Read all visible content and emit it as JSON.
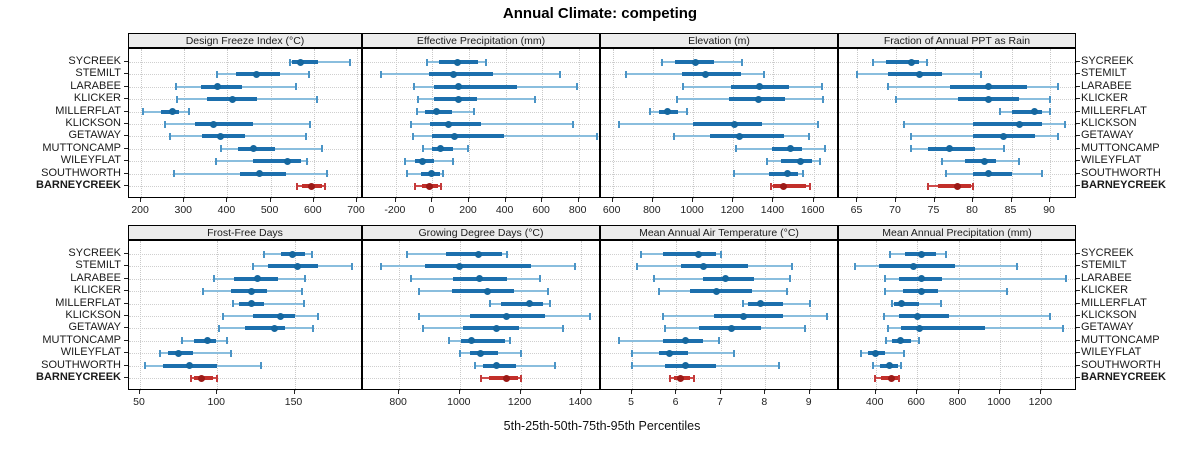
{
  "title": "Annual Climate: competing",
  "caption": "5th-25th-50th-75th-95th Percentiles",
  "colors": {
    "blue_whisker": "#8abede",
    "blue_cap": "#4a94c6",
    "blue_bar": "#1c6fad",
    "blue_dot": "#15679f",
    "red_whisker": "#cf4b4b",
    "red_cap": "#c43a3a",
    "red_bar": "#c22f2a",
    "red_dot": "#9c1a17",
    "strip_bg": "#ececec",
    "grid": "#c9c9c9"
  },
  "chart_data": {
    "type": "interval-dotplot-trellis",
    "percentiles": [
      5,
      25,
      50,
      75,
      95
    ],
    "grid": "dotted",
    "highlight_site": "BARNEYCREEK",
    "sites": [
      {
        "name": "SYCREEK",
        "bold": false
      },
      {
        "name": "STEMILT",
        "bold": false
      },
      {
        "name": "LARABEE",
        "bold": false
      },
      {
        "name": "KLICKER",
        "bold": false
      },
      {
        "name": "MILLERFLAT",
        "bold": false
      },
      {
        "name": "KLICKSON",
        "bold": false
      },
      {
        "name": "GETAWAY",
        "bold": false
      },
      {
        "name": "MUTTONCAMP",
        "bold": false
      },
      {
        "name": "WILEYFLAT",
        "bold": false
      },
      {
        "name": "SOUTHWORTH",
        "bold": false
      },
      {
        "name": "BARNEYCREEK",
        "bold": true
      }
    ],
    "panels": [
      {
        "title": "Design Freeze Index (°C)",
        "row": 0,
        "col": 0,
        "ticks": [
          200,
          300,
          400,
          500,
          600,
          700
        ],
        "min": 172,
        "max": 714,
        "values": [
          [
            545,
            550,
            570,
            610,
            685
          ],
          [
            376,
            420,
            468,
            522,
            588
          ],
          [
            282,
            338,
            378,
            434,
            558
          ],
          [
            284,
            353,
            411,
            468,
            607
          ],
          [
            204,
            245,
            272,
            288,
            310
          ],
          [
            255,
            325,
            368,
            460,
            592
          ],
          [
            268,
            340,
            383,
            440,
            583
          ],
          [
            385,
            425,
            460,
            510,
            620
          ],
          [
            373,
            460,
            538,
            570,
            585
          ],
          [
            277,
            430,
            475,
            535,
            630
          ],
          [
            560,
            572,
            595,
            618,
            625
          ]
        ]
      },
      {
        "title": "Effective Precipitation (mm)",
        "row": 0,
        "col": 1,
        "ticks": [
          -200,
          0,
          200,
          400,
          600,
          800
        ],
        "min": -380,
        "max": 922,
        "values": [
          [
            -30,
            35,
            135,
            250,
            295
          ],
          [
            -280,
            -20,
            115,
            330,
            700
          ],
          [
            -100,
            10,
            140,
            460,
            790
          ],
          [
            -77,
            10,
            140,
            242,
            560
          ],
          [
            -86,
            -40,
            20,
            105,
            225
          ],
          [
            -120,
            -15,
            85,
            265,
            770
          ],
          [
            -105,
            -5,
            120,
            390,
            900
          ],
          [
            -50,
            -5,
            45,
            110,
            195
          ],
          [
            -150,
            -95,
            -55,
            10,
            110
          ],
          [
            -140,
            -60,
            -5,
            40,
            60
          ],
          [
            -95,
            -55,
            -15,
            30,
            45
          ]
        ]
      },
      {
        "title": "Elevation (m)",
        "row": 0,
        "col": 2,
        "ticks": [
          600,
          800,
          1000,
          1200,
          1400,
          1600
        ],
        "min": 542,
        "max": 1726,
        "values": [
          [
            845,
            910,
            1010,
            1105,
            1245
          ],
          [
            665,
            945,
            1060,
            1240,
            1355
          ],
          [
            950,
            1190,
            1330,
            1475,
            1640
          ],
          [
            920,
            1180,
            1325,
            1455,
            1645
          ],
          [
            785,
            830,
            875,
            925,
            970
          ],
          [
            630,
            1000,
            1205,
            1345,
            1620
          ],
          [
            905,
            1085,
            1230,
            1450,
            1575
          ],
          [
            1215,
            1395,
            1485,
            1540,
            1655
          ],
          [
            1370,
            1435,
            1535,
            1590,
            1630
          ],
          [
            1205,
            1380,
            1470,
            1520,
            1545
          ],
          [
            1390,
            1400,
            1450,
            1560,
            1580
          ]
        ]
      },
      {
        "title": "Fraction of Annual PPT as Rain",
        "row": 0,
        "col": 3,
        "ticks": [
          65,
          70,
          75,
          80,
          85,
          90
        ],
        "min": 62.6,
        "max": 93.5,
        "values": [
          [
            67,
            68.7,
            72,
            73,
            74
          ],
          [
            65,
            69,
            73,
            76,
            81
          ],
          [
            69,
            77,
            82,
            87,
            91
          ],
          [
            70,
            78,
            82,
            86,
            90
          ],
          [
            83.5,
            85,
            88,
            89,
            90
          ],
          [
            71,
            80,
            86,
            89,
            92
          ],
          [
            72,
            80,
            84,
            88,
            91
          ],
          [
            72,
            74.2,
            77,
            80.2,
            84
          ],
          [
            76,
            79,
            81.5,
            83,
            86
          ],
          [
            76.5,
            80,
            82,
            85,
            89
          ],
          [
            74.2,
            75.5,
            78,
            79.7,
            80
          ]
        ]
      },
      {
        "title": "Frost-Free Days",
        "row": 1,
        "col": 0,
        "ticks": [
          50,
          100,
          150
        ],
        "min": 42.9,
        "max": 194.3,
        "values": [
          [
            130,
            141,
            149,
            157,
            161
          ],
          [
            123,
            133,
            152,
            165,
            187
          ],
          [
            98,
            111,
            126,
            139,
            157
          ],
          [
            91,
            109,
            122,
            132,
            155
          ],
          [
            110,
            114,
            122,
            130,
            156
          ],
          [
            104,
            123,
            141,
            150,
            165
          ],
          [
            101,
            118,
            137,
            144,
            162
          ],
          [
            77,
            85,
            94,
            99,
            106
          ],
          [
            63,
            68,
            75,
            84,
            109
          ],
          [
            53,
            65,
            82,
            100,
            128
          ],
          [
            83,
            85,
            90,
            97,
            100
          ]
        ]
      },
      {
        "title": "Growing Degree Days (°C)",
        "row": 1,
        "col": 1,
        "ticks": [
          800,
          1000,
          1200,
          1400
        ],
        "min": 681,
        "max": 1465,
        "values": [
          [
            825,
            955,
            1060,
            1140,
            1155
          ],
          [
            740,
            885,
            1000,
            1235,
            1380
          ],
          [
            840,
            978,
            1065,
            1155,
            1265
          ],
          [
            865,
            973,
            1090,
            1180,
            1290
          ],
          [
            1100,
            1137,
            1230,
            1275,
            1297
          ],
          [
            865,
            1035,
            1155,
            1280,
            1430
          ],
          [
            880,
            1010,
            1120,
            1195,
            1340
          ],
          [
            965,
            1005,
            1040,
            1150,
            1165
          ],
          [
            1000,
            1035,
            1068,
            1125,
            1203
          ],
          [
            1050,
            1075,
            1120,
            1185,
            1315
          ],
          [
            1070,
            1095,
            1155,
            1190,
            1200
          ]
        ]
      },
      {
        "title": "Mean Annual Air Temperature (°C)",
        "row": 1,
        "col": 2,
        "ticks": [
          5,
          6,
          7,
          8,
          9
        ],
        "min": 4.3,
        "max": 9.66,
        "values": [
          [
            5.2,
            5.7,
            6.5,
            6.9,
            7.0
          ],
          [
            5.1,
            6.1,
            6.6,
            7.6,
            8.6
          ],
          [
            5.5,
            6.6,
            7.1,
            7.75,
            8.55
          ],
          [
            5.6,
            6.3,
            6.9,
            7.7,
            8.5
          ],
          [
            7.5,
            7.6,
            7.9,
            8.4,
            9.0
          ],
          [
            5.7,
            6.85,
            7.5,
            8.4,
            9.4
          ],
          [
            5.75,
            6.5,
            7.25,
            7.9,
            8.9
          ],
          [
            4.7,
            5.7,
            6.2,
            6.6,
            6.95
          ],
          [
            5.0,
            5.6,
            5.85,
            6.25,
            7.3
          ],
          [
            5.0,
            5.75,
            6.2,
            6.9,
            8.3
          ],
          [
            5.85,
            5.95,
            6.1,
            6.3,
            6.4
          ]
        ]
      },
      {
        "title": "Mean Annual Precipitation (mm)",
        "row": 1,
        "col": 3,
        "ticks": [
          400,
          600,
          800,
          1000,
          1200
        ],
        "min": 223,
        "max": 1372,
        "values": [
          [
            470,
            540,
            620,
            690,
            740
          ],
          [
            300,
            415,
            585,
            785,
            1080
          ],
          [
            445,
            515,
            620,
            720,
            1320
          ],
          [
            445,
            530,
            620,
            700,
            1035
          ],
          [
            477,
            490,
            525,
            610,
            715
          ],
          [
            440,
            515,
            600,
            755,
            1240
          ],
          [
            460,
            520,
            610,
            930,
            1305
          ],
          [
            450,
            480,
            520,
            570,
            610
          ],
          [
            330,
            365,
            400,
            445,
            535
          ],
          [
            385,
            420,
            465,
            510,
            520
          ],
          [
            395,
            425,
            475,
            510,
            515
          ]
        ]
      }
    ]
  }
}
